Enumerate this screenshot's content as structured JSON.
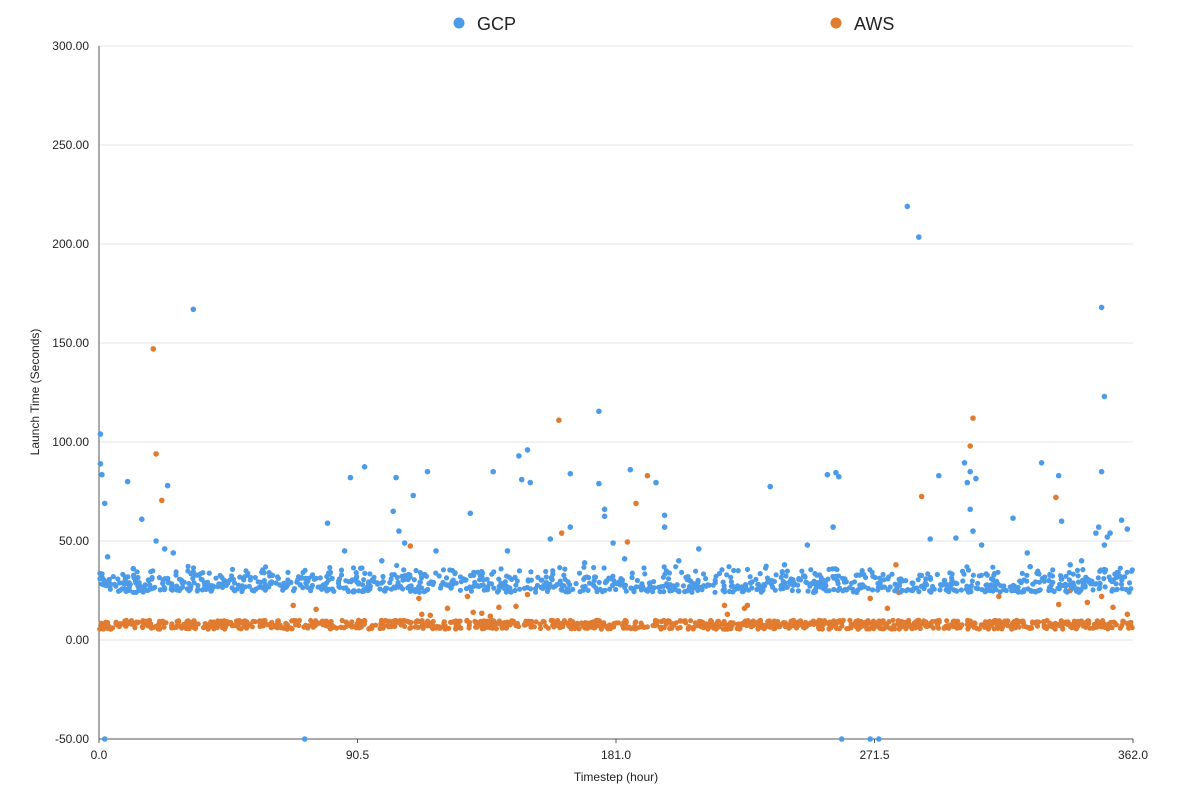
{
  "chart_data": {
    "type": "scatter",
    "title": "",
    "xlabel": "Timestep (hour)",
    "ylabel": "Launch Time (Seconds)",
    "xlim": [
      0,
      362
    ],
    "ylim": [
      -50,
      300
    ],
    "x_ticks": [
      "0.0",
      "90.5",
      "181.0",
      "271.5",
      "362.0"
    ],
    "y_ticks": [
      "-50.00",
      "0.00",
      "50.00",
      "100.00",
      "150.00",
      "200.00",
      "250.00",
      "300.00"
    ],
    "grid": "horizontal",
    "legend_position": "top",
    "series": [
      {
        "name": "GCP",
        "color": "#4c9be8",
        "baseline_range": [
          24,
          38
        ],
        "outliers": [
          [
            0.5,
            104
          ],
          [
            0.5,
            89
          ],
          [
            1,
            83.5
          ],
          [
            2,
            69
          ],
          [
            3,
            42
          ],
          [
            10,
            80
          ],
          [
            12,
            36
          ],
          [
            15,
            61
          ],
          [
            20,
            50
          ],
          [
            23,
            46
          ],
          [
            24,
            78
          ],
          [
            26,
            44
          ],
          [
            33,
            167
          ],
          [
            80,
            59
          ],
          [
            86,
            45
          ],
          [
            88,
            82
          ],
          [
            93,
            87.5
          ],
          [
            99,
            40
          ],
          [
            103,
            65
          ],
          [
            104,
            82
          ],
          [
            105,
            55
          ],
          [
            107,
            49
          ],
          [
            110,
            73
          ],
          [
            115,
            85
          ],
          [
            118,
            45
          ],
          [
            130,
            64
          ],
          [
            138,
            85
          ],
          [
            143,
            45
          ],
          [
            147,
            93
          ],
          [
            148,
            81
          ],
          [
            150,
            96
          ],
          [
            151,
            79.5
          ],
          [
            158,
            51
          ],
          [
            165,
            84
          ],
          [
            165,
            57
          ],
          [
            170,
            39
          ],
          [
            175,
            115.5
          ],
          [
            175,
            79
          ],
          [
            177,
            66
          ],
          [
            177,
            62.5
          ],
          [
            180,
            49
          ],
          [
            184,
            41
          ],
          [
            186,
            86
          ],
          [
            195,
            79.5
          ],
          [
            198,
            63
          ],
          [
            198,
            57
          ],
          [
            203,
            40
          ],
          [
            210,
            46
          ],
          [
            235,
            77.5
          ],
          [
            240,
            38
          ],
          [
            248,
            48
          ],
          [
            255,
            83.5
          ],
          [
            257,
            57
          ],
          [
            258,
            84.5
          ],
          [
            259,
            82.5
          ],
          [
            283,
            219
          ],
          [
            287,
            203.5
          ],
          [
            291,
            51
          ],
          [
            294,
            83
          ],
          [
            296,
            30
          ],
          [
            300,
            51.5
          ],
          [
            303,
            89.5
          ],
          [
            304,
            79.5
          ],
          [
            305,
            85
          ],
          [
            305,
            66
          ],
          [
            306,
            55
          ],
          [
            307,
            81.5
          ],
          [
            309,
            48
          ],
          [
            320,
            61.5
          ],
          [
            325,
            44
          ],
          [
            326,
            37
          ],
          [
            330,
            89.5
          ],
          [
            336,
            83
          ],
          [
            337,
            60
          ],
          [
            340,
            38
          ],
          [
            344,
            40
          ],
          [
            349,
            54
          ],
          [
            350,
            57
          ],
          [
            351,
            85
          ],
          [
            351,
            168
          ],
          [
            352,
            123
          ],
          [
            352,
            48
          ],
          [
            353,
            52
          ],
          [
            354,
            54
          ],
          [
            358,
            60.5
          ],
          [
            360,
            56
          ]
        ],
        "floor_points": [
          [
            2,
            -50
          ],
          [
            72,
            -50
          ],
          [
            260,
            -50
          ],
          [
            270,
            -50
          ],
          [
            273,
            -50
          ]
        ]
      },
      {
        "name": "AWS",
        "color": "#e07b30",
        "baseline_range": [
          5.5,
          10
        ],
        "outliers": [
          [
            19,
            147
          ],
          [
            20,
            94
          ],
          [
            22,
            70.5
          ],
          [
            68,
            17.5
          ],
          [
            76,
            15.5
          ],
          [
            109,
            47.5
          ],
          [
            112,
            21
          ],
          [
            113,
            13
          ],
          [
            116,
            12.5
          ],
          [
            122,
            16
          ],
          [
            129,
            22
          ],
          [
            131,
            14
          ],
          [
            134,
            13.5
          ],
          [
            137,
            12
          ],
          [
            140,
            16.5
          ],
          [
            146,
            17
          ],
          [
            150,
            23
          ],
          [
            161,
            111
          ],
          [
            162,
            54
          ],
          [
            185,
            49.5
          ],
          [
            188,
            69
          ],
          [
            192,
            83
          ],
          [
            219,
            17.5
          ],
          [
            220,
            13
          ],
          [
            226,
            16
          ],
          [
            227,
            17.5
          ],
          [
            270,
            21
          ],
          [
            276,
            16
          ],
          [
            279,
            38
          ],
          [
            280,
            24
          ],
          [
            288,
            72.5
          ],
          [
            305,
            98
          ],
          [
            306,
            112
          ],
          [
            315,
            22
          ],
          [
            335,
            72
          ],
          [
            336,
            18
          ],
          [
            340,
            25
          ],
          [
            346,
            19
          ],
          [
            351,
            22
          ],
          [
            355,
            16.5
          ],
          [
            360,
            13
          ]
        ]
      }
    ],
    "baseline_points_per_series": 1100
  }
}
